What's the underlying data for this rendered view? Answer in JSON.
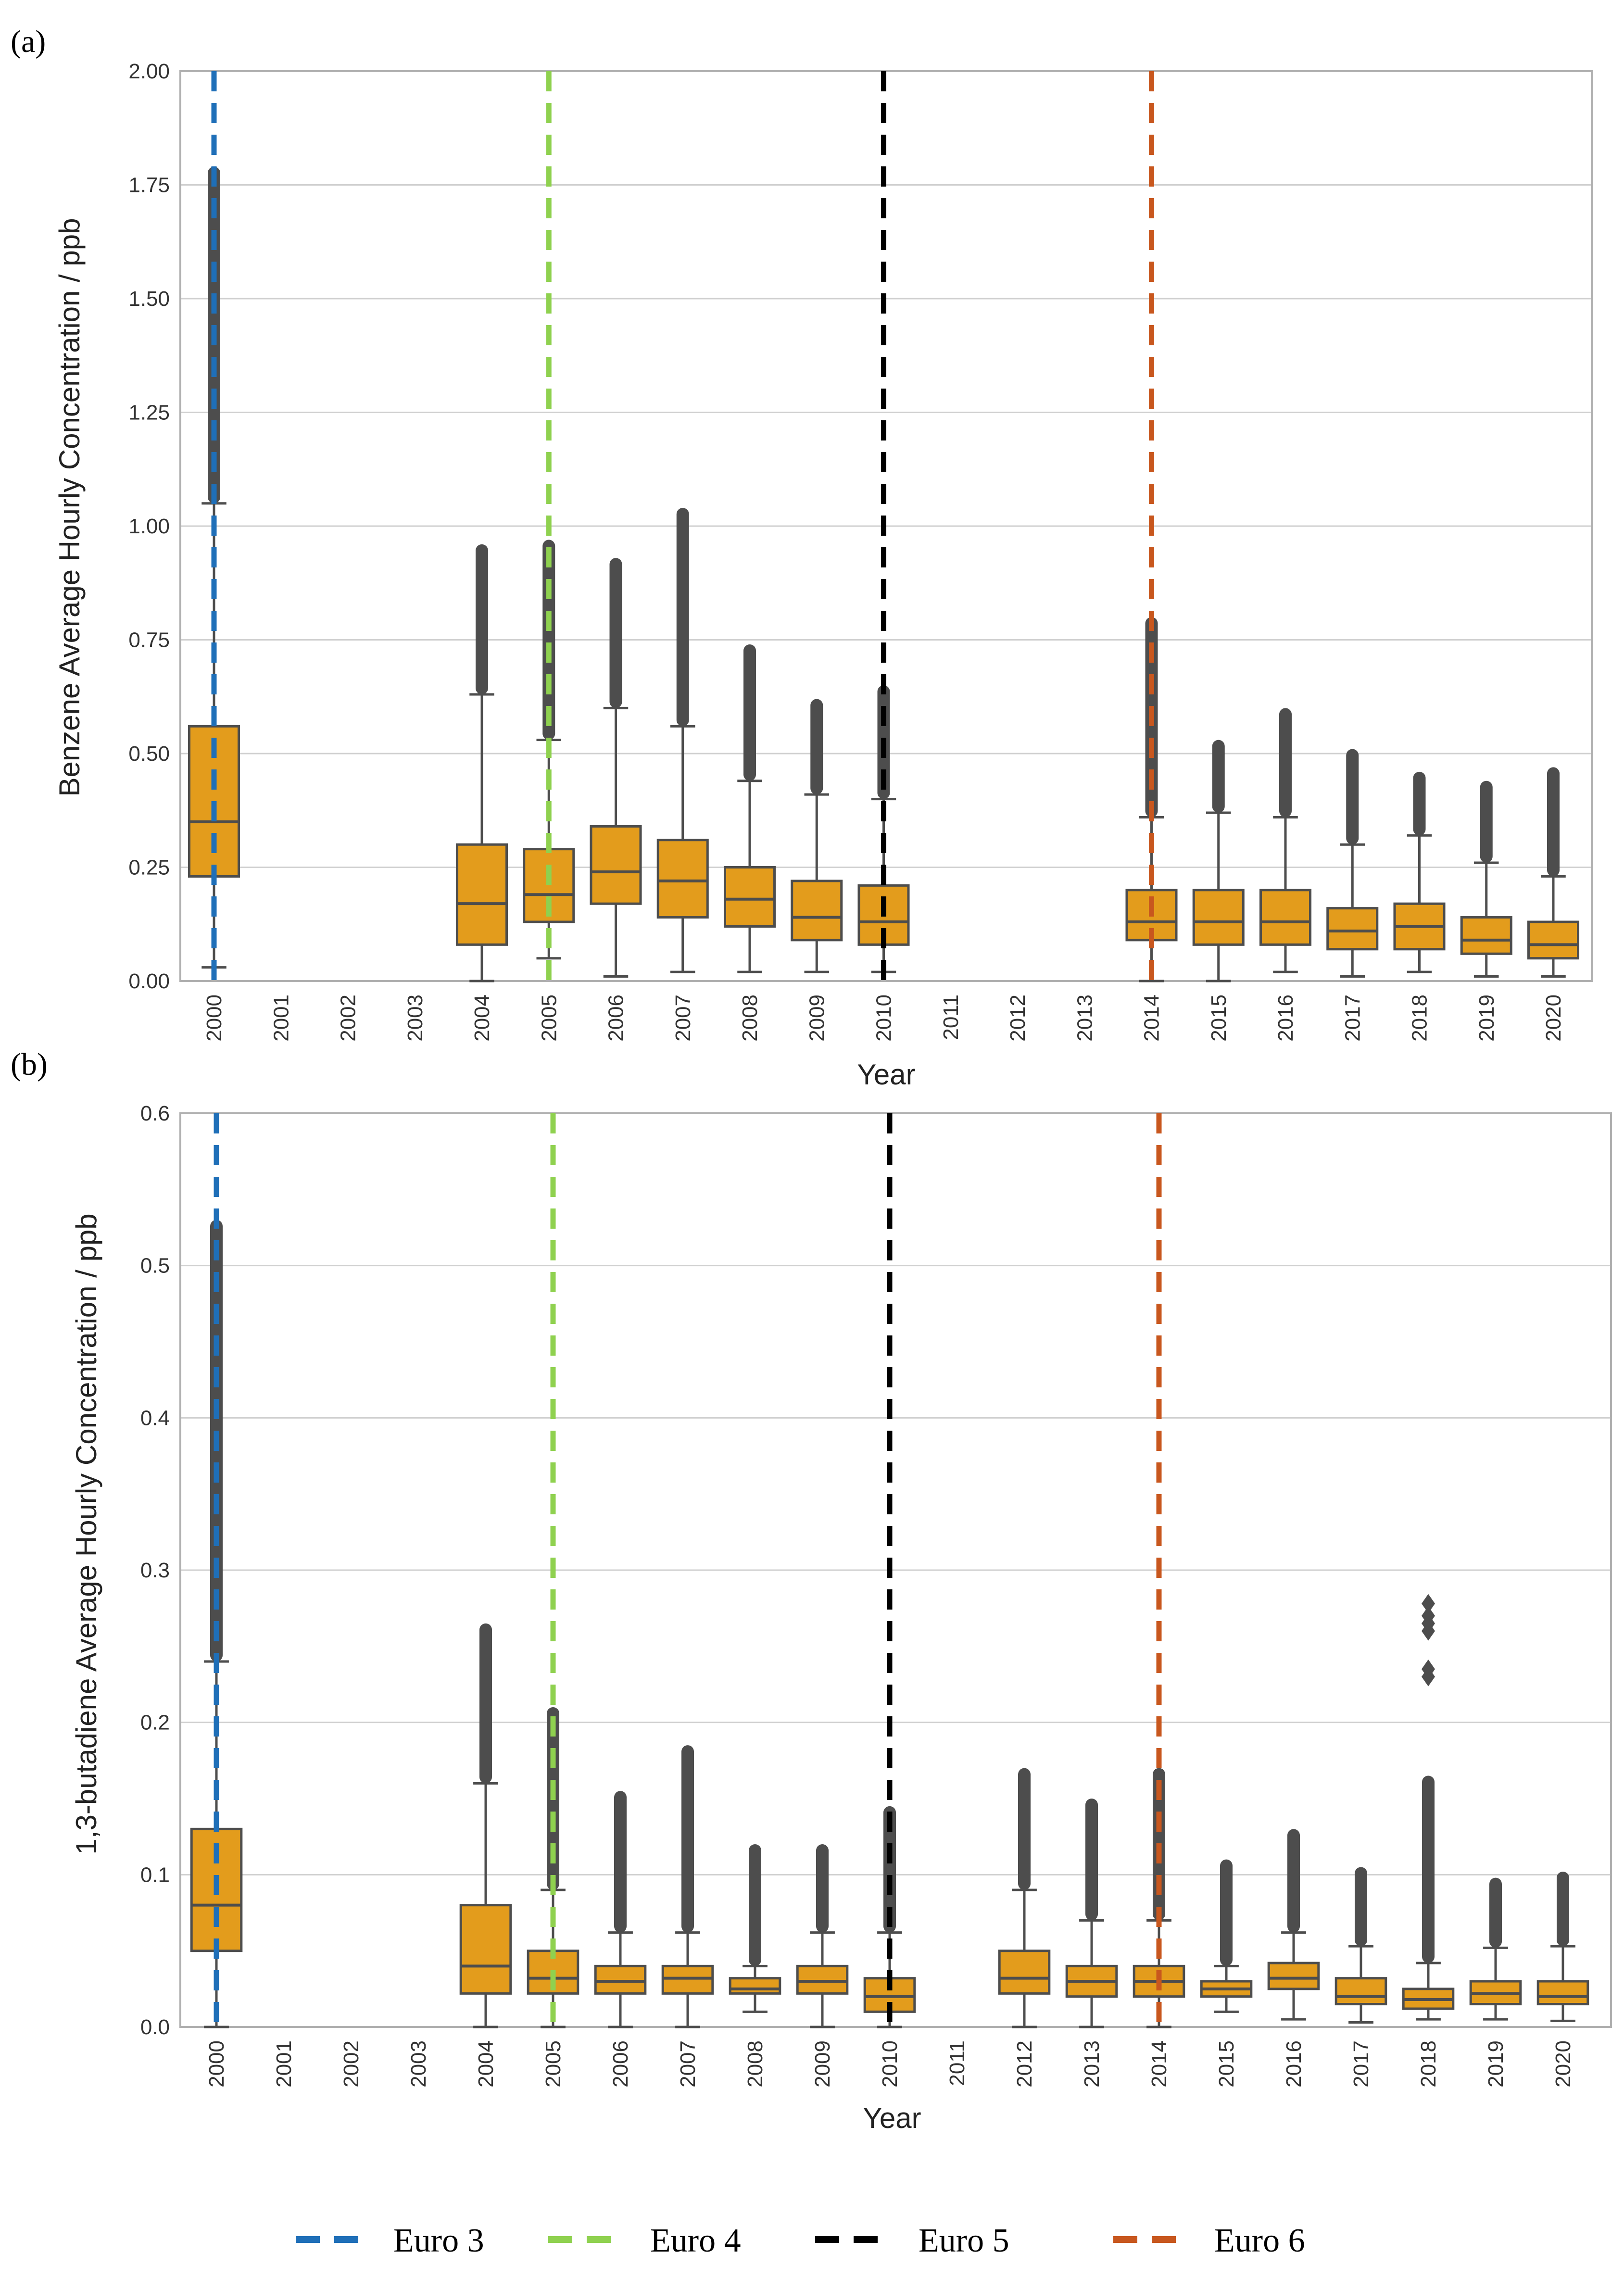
{
  "legend": {
    "entries": [
      {
        "label": "Euro 3",
        "color": "#1f6fb8"
      },
      {
        "label": "Euro 4",
        "color": "#8fd14f"
      },
      {
        "label": "Euro 5",
        "color": "#000000"
      },
      {
        "label": "Euro 6",
        "color": "#c8571e"
      }
    ]
  },
  "style": {
    "box_fill": "#e39c1c",
    "box_edge": "#4d4d4d",
    "outlier_color": "#4d4d4d",
    "grid_color": "#d0d0d0",
    "frame_color": "#b0b0b0"
  },
  "chart_data": [
    {
      "type": "box",
      "panel_label": "(a)",
      "title": "",
      "xlabel": "Year",
      "ylabel": "Benzene Average Hourly Concentration / ppb",
      "categories": [
        "2000",
        "2001",
        "2002",
        "2003",
        "2004",
        "2005",
        "2006",
        "2007",
        "2008",
        "2009",
        "2010",
        "2011",
        "2012",
        "2013",
        "2014",
        "2015",
        "2016",
        "2017",
        "2018",
        "2019",
        "2020"
      ],
      "ylim": [
        0,
        2.0
      ],
      "yticks": [
        0.0,
        0.25,
        0.5,
        0.75,
        1.0,
        1.25,
        1.5,
        1.75,
        2.0
      ],
      "ytick_labels": [
        "0.00",
        "0.25",
        "0.50",
        "0.75",
        "1.00",
        "1.25",
        "1.50",
        "1.75",
        "2.00"
      ],
      "grid": true,
      "vlines": [
        {
          "label": "Euro 3",
          "x": "2000",
          "color": "#1f6fb8"
        },
        {
          "label": "Euro 4",
          "x": "2005",
          "color": "#8fd14f"
        },
        {
          "label": "Euro 5",
          "x": "2010",
          "color": "#000000"
        },
        {
          "label": "Euro 6",
          "x": "2014",
          "color": "#c8571e"
        }
      ],
      "boxes": [
        {
          "x": "2000",
          "wlo": 0.03,
          "q1": 0.23,
          "med": 0.35,
          "q3": 0.56,
          "whi": 1.05,
          "outlier_max": 1.79
        },
        {
          "x": "2004",
          "wlo": 0.0,
          "q1": 0.08,
          "med": 0.17,
          "q3": 0.3,
          "whi": 0.63,
          "outlier_max": 0.96
        },
        {
          "x": "2005",
          "wlo": 0.05,
          "q1": 0.13,
          "med": 0.19,
          "q3": 0.29,
          "whi": 0.53,
          "outlier_max": 0.97
        },
        {
          "x": "2006",
          "wlo": 0.01,
          "q1": 0.17,
          "med": 0.24,
          "q3": 0.34,
          "whi": 0.6,
          "outlier_max": 0.93
        },
        {
          "x": "2007",
          "wlo": 0.02,
          "q1": 0.14,
          "med": 0.22,
          "q3": 0.31,
          "whi": 0.56,
          "outlier_max": 1.04
        },
        {
          "x": "2008",
          "wlo": 0.02,
          "q1": 0.12,
          "med": 0.18,
          "q3": 0.25,
          "whi": 0.44,
          "outlier_max": 0.74
        },
        {
          "x": "2009",
          "wlo": 0.02,
          "q1": 0.09,
          "med": 0.14,
          "q3": 0.22,
          "whi": 0.41,
          "outlier_max": 0.62
        },
        {
          "x": "2010",
          "wlo": 0.02,
          "q1": 0.08,
          "med": 0.13,
          "q3": 0.21,
          "whi": 0.4,
          "outlier_max": 0.65
        },
        {
          "x": "2014",
          "wlo": 0.0,
          "q1": 0.09,
          "med": 0.13,
          "q3": 0.2,
          "whi": 0.36,
          "outlier_max": 0.8
        },
        {
          "x": "2015",
          "wlo": 0.0,
          "q1": 0.08,
          "med": 0.13,
          "q3": 0.2,
          "whi": 0.37,
          "outlier_max": 0.53
        },
        {
          "x": "2016",
          "wlo": 0.02,
          "q1": 0.08,
          "med": 0.13,
          "q3": 0.2,
          "whi": 0.36,
          "outlier_max": 0.6
        },
        {
          "x": "2017",
          "wlo": 0.01,
          "q1": 0.07,
          "med": 0.11,
          "q3": 0.16,
          "whi": 0.3,
          "outlier_max": 0.51
        },
        {
          "x": "2018",
          "wlo": 0.02,
          "q1": 0.07,
          "med": 0.12,
          "q3": 0.17,
          "whi": 0.32,
          "outlier_max": 0.46
        },
        {
          "x": "2019",
          "wlo": 0.01,
          "q1": 0.06,
          "med": 0.09,
          "q3": 0.14,
          "whi": 0.26,
          "outlier_max": 0.44
        },
        {
          "x": "2020",
          "wlo": 0.01,
          "q1": 0.05,
          "med": 0.08,
          "q3": 0.13,
          "whi": 0.23,
          "outlier_max": 0.47
        }
      ]
    },
    {
      "type": "box",
      "panel_label": "(b)",
      "title": "",
      "xlabel": "Year",
      "ylabel": "1,3-butadiene Average Hourly Concentration / ppb",
      "categories": [
        "2000",
        "2001",
        "2002",
        "2003",
        "2004",
        "2005",
        "2006",
        "2007",
        "2008",
        "2009",
        "2010",
        "2011",
        "2012",
        "2013",
        "2014",
        "2015",
        "2016",
        "2017",
        "2018",
        "2019",
        "2020"
      ],
      "ylim": [
        0,
        0.6
      ],
      "yticks": [
        0.0,
        0.1,
        0.2,
        0.3,
        0.4,
        0.5,
        0.6
      ],
      "ytick_labels": [
        "0.0",
        "0.1",
        "0.2",
        "0.3",
        "0.4",
        "0.5",
        "0.6"
      ],
      "grid": true,
      "vlines": [
        {
          "label": "Euro 3",
          "x": "2000",
          "color": "#1f6fb8"
        },
        {
          "label": "Euro 4",
          "x": "2005",
          "color": "#8fd14f"
        },
        {
          "label": "Euro 5",
          "x": "2010",
          "color": "#000000"
        },
        {
          "label": "Euro 6",
          "x": "2014",
          "color": "#c8571e"
        }
      ],
      "boxes": [
        {
          "x": "2000",
          "wlo": 0.0,
          "q1": 0.05,
          "med": 0.08,
          "q3": 0.13,
          "whi": 0.24,
          "outlier_max": 0.53
        },
        {
          "x": "2004",
          "wlo": 0.0,
          "q1": 0.022,
          "med": 0.04,
          "q3": 0.08,
          "whi": 0.16,
          "outlier_max": 0.265
        },
        {
          "x": "2005",
          "wlo": 0.0,
          "q1": 0.022,
          "med": 0.032,
          "q3": 0.05,
          "whi": 0.09,
          "outlier_max": 0.21
        },
        {
          "x": "2006",
          "wlo": 0.0,
          "q1": 0.022,
          "med": 0.03,
          "q3": 0.04,
          "whi": 0.062,
          "outlier_max": 0.155
        },
        {
          "x": "2007",
          "wlo": 0.0,
          "q1": 0.022,
          "med": 0.032,
          "q3": 0.04,
          "whi": 0.062,
          "outlier_max": 0.185
        },
        {
          "x": "2008",
          "wlo": 0.01,
          "q1": 0.022,
          "med": 0.025,
          "q3": 0.032,
          "whi": 0.04,
          "outlier_max": 0.12
        },
        {
          "x": "2009",
          "wlo": 0.0,
          "q1": 0.022,
          "med": 0.03,
          "q3": 0.04,
          "whi": 0.062,
          "outlier_max": 0.12
        },
        {
          "x": "2010",
          "wlo": 0.0,
          "q1": 0.01,
          "med": 0.02,
          "q3": 0.032,
          "whi": 0.062,
          "outlier_max": 0.145
        },
        {
          "x": "2012",
          "wlo": 0.0,
          "q1": 0.022,
          "med": 0.032,
          "q3": 0.05,
          "whi": 0.09,
          "outlier_max": 0.17
        },
        {
          "x": "2013",
          "wlo": 0.0,
          "q1": 0.02,
          "med": 0.03,
          "q3": 0.04,
          "whi": 0.07,
          "outlier_max": 0.15
        },
        {
          "x": "2014",
          "wlo": 0.0,
          "q1": 0.02,
          "med": 0.03,
          "q3": 0.04,
          "whi": 0.07,
          "outlier_max": 0.17
        },
        {
          "x": "2015",
          "wlo": 0.01,
          "q1": 0.02,
          "med": 0.025,
          "q3": 0.03,
          "whi": 0.04,
          "outlier_max": 0.11
        },
        {
          "x": "2016",
          "wlo": 0.005,
          "q1": 0.025,
          "med": 0.032,
          "q3": 0.042,
          "whi": 0.062,
          "outlier_max": 0.13
        },
        {
          "x": "2017",
          "wlo": 0.003,
          "q1": 0.015,
          "med": 0.02,
          "q3": 0.032,
          "whi": 0.053,
          "outlier_max": 0.105
        },
        {
          "x": "2018",
          "wlo": 0.005,
          "q1": 0.012,
          "med": 0.018,
          "q3": 0.025,
          "whi": 0.042,
          "outlier_max": 0.165,
          "extra_outliers": [
            0.23,
            0.235,
            0.26,
            0.265,
            0.27,
            0.278
          ]
        },
        {
          "x": "2019",
          "wlo": 0.005,
          "q1": 0.015,
          "med": 0.022,
          "q3": 0.03,
          "whi": 0.052,
          "outlier_max": 0.098
        },
        {
          "x": "2020",
          "wlo": 0.004,
          "q1": 0.015,
          "med": 0.02,
          "q3": 0.03,
          "whi": 0.053,
          "outlier_max": 0.102
        }
      ]
    }
  ]
}
